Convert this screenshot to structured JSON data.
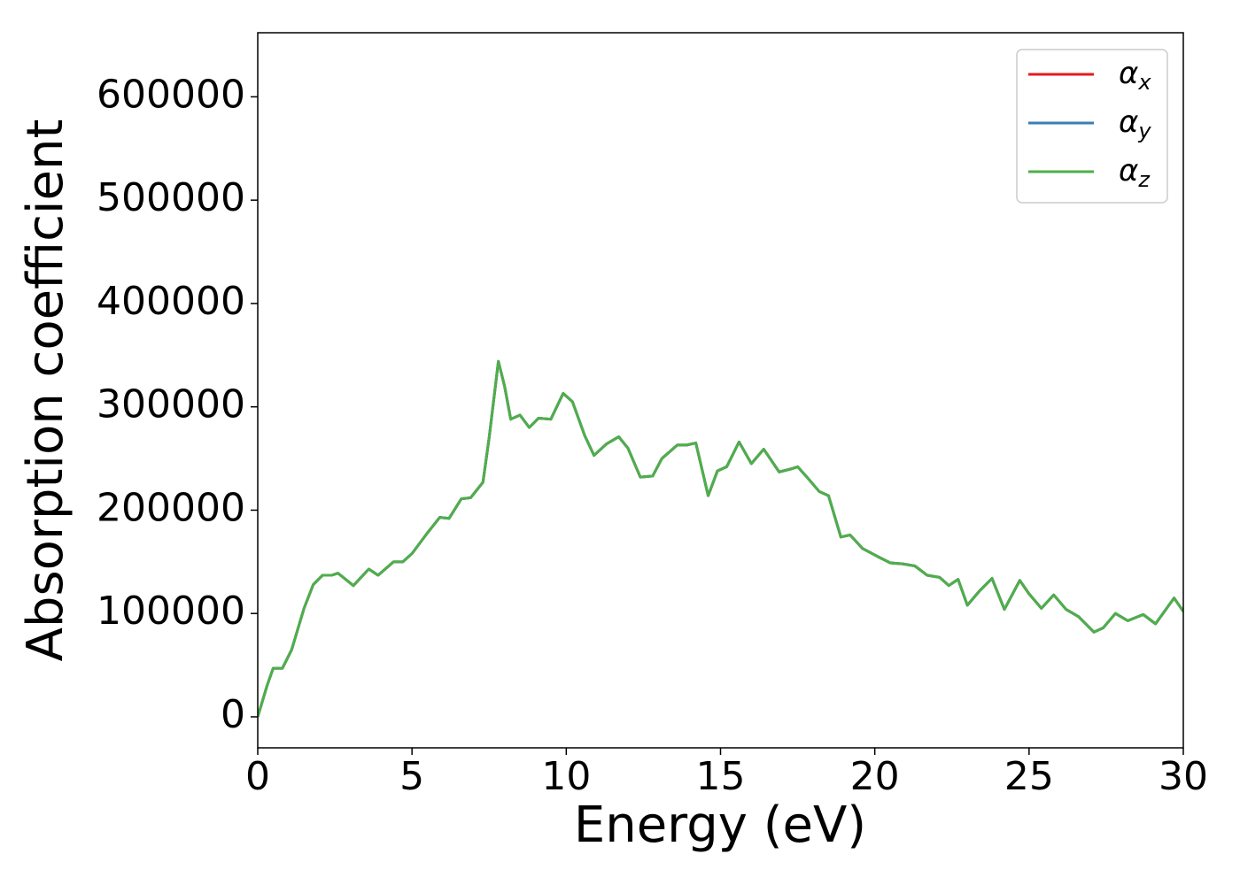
{
  "chart_data": {
    "type": "line",
    "xlabel": "Energy (eV)",
    "ylabel": "Absorption coefficient",
    "x": [
      0,
      0.3,
      0.5,
      0.8,
      1.1,
      1.5,
      1.8,
      2.1,
      2.4,
      2.6,
      3.1,
      3.6,
      3.9,
      4.4,
      4.7,
      5.0,
      5.5,
      5.9,
      6.2,
      6.6,
      6.9,
      7.3,
      7.5,
      7.8,
      8.0,
      8.2,
      8.5,
      8.8,
      9.1,
      9.5,
      9.9,
      10.2,
      10.6,
      10.9,
      11.3,
      11.7,
      12.0,
      12.4,
      12.8,
      13.1,
      13.6,
      13.9,
      14.2,
      14.6,
      14.9,
      15.2,
      15.6,
      16.0,
      16.4,
      16.9,
      17.3,
      17.5,
      17.8,
      18.2,
      18.5,
      18.9,
      19.2,
      19.6,
      20.1,
      20.5,
      20.9,
      21.3,
      21.7,
      22.1,
      22.4,
      22.7,
      23.0,
      23.4,
      23.8,
      24.2,
      24.7,
      25.0,
      25.4,
      25.8,
      26.2,
      26.6,
      27.1,
      27.4,
      27.8,
      28.2,
      28.7,
      29.1,
      29.7,
      30.0
    ],
    "series": [
      {
        "name": "α_x",
        "color": "#e41a1c",
        "values": [
          0,
          30000,
          47000,
          47000,
          65000,
          105000,
          128000,
          137000,
          137000,
          139000,
          127000,
          143000,
          137000,
          150000,
          150000,
          158000,
          178000,
          193000,
          192000,
          211000,
          212000,
          227000,
          270000,
          344000,
          320000,
          288000,
          292000,
          280000,
          289000,
          288000,
          313000,
          305000,
          272000,
          253000,
          264000,
          271000,
          260000,
          232000,
          233000,
          250000,
          263000,
          263000,
          265000,
          214000,
          238000,
          242000,
          266000,
          245000,
          259000,
          237000,
          240000,
          242000,
          232000,
          218000,
          214000,
          174000,
          176000,
          163000,
          155000,
          149000,
          148000,
          146000,
          137000,
          135000,
          127000,
          133000,
          108000,
          122000,
          134000,
          104000,
          132000,
          119000,
          105000,
          118000,
          104000,
          97000,
          82000,
          86000,
          100000,
          93000,
          99000,
          90000,
          115000,
          102000
        ]
      },
      {
        "name": "α_y",
        "color": "#377eb8",
        "values": [
          0,
          30000,
          47000,
          47000,
          65000,
          105000,
          128000,
          137000,
          137000,
          139000,
          127000,
          143000,
          137000,
          150000,
          150000,
          158000,
          178000,
          193000,
          192000,
          211000,
          212000,
          227000,
          270000,
          344000,
          320000,
          288000,
          292000,
          280000,
          289000,
          288000,
          313000,
          305000,
          272000,
          253000,
          264000,
          271000,
          260000,
          232000,
          233000,
          250000,
          263000,
          263000,
          265000,
          214000,
          238000,
          242000,
          266000,
          245000,
          259000,
          237000,
          240000,
          242000,
          232000,
          218000,
          214000,
          174000,
          176000,
          163000,
          155000,
          149000,
          148000,
          146000,
          137000,
          135000,
          127000,
          133000,
          108000,
          122000,
          134000,
          104000,
          132000,
          119000,
          105000,
          118000,
          104000,
          97000,
          82000,
          86000,
          100000,
          93000,
          99000,
          90000,
          115000,
          102000
        ]
      },
      {
        "name": "α_z",
        "color": "#4daf4a",
        "values": [
          0,
          30000,
          47000,
          47000,
          65000,
          105000,
          128000,
          137000,
          137000,
          139000,
          127000,
          143000,
          137000,
          150000,
          150000,
          158000,
          178000,
          193000,
          192000,
          211000,
          212000,
          227000,
          270000,
          344000,
          320000,
          288000,
          292000,
          280000,
          289000,
          288000,
          313000,
          305000,
          272000,
          253000,
          264000,
          271000,
          260000,
          232000,
          233000,
          250000,
          263000,
          263000,
          265000,
          214000,
          238000,
          242000,
          266000,
          245000,
          259000,
          237000,
          240000,
          242000,
          232000,
          218000,
          214000,
          174000,
          176000,
          163000,
          155000,
          149000,
          148000,
          146000,
          137000,
          135000,
          127000,
          133000,
          108000,
          122000,
          134000,
          104000,
          132000,
          119000,
          105000,
          118000,
          104000,
          97000,
          82000,
          86000,
          100000,
          93000,
          99000,
          90000,
          115000,
          102000
        ]
      }
    ],
    "xlim": [
      0,
      30
    ],
    "xticks": [
      0,
      5,
      10,
      15,
      20,
      25,
      30
    ],
    "ylim": [
      -30000,
      662000
    ],
    "yticks": [
      0,
      100000,
      200000,
      300000,
      400000,
      500000,
      600000
    ],
    "legend": "upper right",
    "grid": false
  }
}
